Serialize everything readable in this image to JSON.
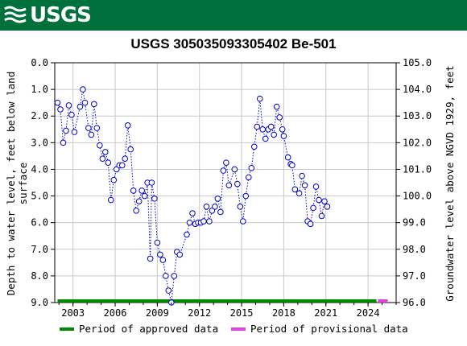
{
  "header": {
    "logo_text": "USGS",
    "logo_icon": "usgs-wave-icon",
    "brand_color": "#00703c"
  },
  "chart_data": {
    "type": "line",
    "title": "USGS 305035093305402 Be-501",
    "ylabel_left_line1": "Depth to water level, feet below land",
    "ylabel_left_line2": "surface",
    "ylabel_right": "Groundwater level above NGVD 1929, feet",
    "x_ticks": [
      "2003",
      "2006",
      "2009",
      "2012",
      "2015",
      "2018",
      "2021",
      "2024"
    ],
    "x_tick_values": [
      2003,
      2006,
      2009,
      2012,
      2015,
      2018,
      2021,
      2024
    ],
    "xlim": [
      2001.7,
      2026.0
    ],
    "ylim_left": [
      0.0,
      9.0
    ],
    "ylim_left_inverted": true,
    "y_ticks_left": [
      "0.0",
      "1.0",
      "2.0",
      "3.0",
      "4.0",
      "5.0",
      "6.0",
      "7.0",
      "8.0",
      "9.0"
    ],
    "ylim_right": [
      96.0,
      105.0
    ],
    "y_ticks_right": [
      "105.0",
      "104.0",
      "103.0",
      "102.0",
      "101.0",
      "100.0",
      "99.0",
      "98.0",
      "97.0",
      "96.0"
    ],
    "grid": true,
    "series": [
      {
        "color": "#0000cc",
        "marker": "open-circle",
        "line_style": "dotted",
        "points": [
          [
            2001.9,
            1.5
          ],
          [
            2002.1,
            1.75
          ],
          [
            2002.3,
            3.0
          ],
          [
            2002.5,
            2.55
          ],
          [
            2002.7,
            1.6
          ],
          [
            2002.9,
            1.95
          ],
          [
            2003.1,
            2.6
          ],
          [
            2003.5,
            1.65
          ],
          [
            2003.7,
            1.0
          ],
          [
            2003.85,
            1.5
          ],
          [
            2004.1,
            2.45
          ],
          [
            2004.3,
            2.7
          ],
          [
            2004.5,
            1.55
          ],
          [
            2004.7,
            2.45
          ],
          [
            2004.9,
            3.1
          ],
          [
            2005.1,
            3.6
          ],
          [
            2005.3,
            3.35
          ],
          [
            2005.5,
            3.75
          ],
          [
            2005.7,
            5.15
          ],
          [
            2005.9,
            4.4
          ],
          [
            2006.1,
            4.0
          ],
          [
            2006.3,
            3.85
          ],
          [
            2006.5,
            3.85
          ],
          [
            2006.7,
            3.6
          ],
          [
            2006.9,
            2.35
          ],
          [
            2007.1,
            3.25
          ],
          [
            2007.3,
            4.8
          ],
          [
            2007.5,
            5.55
          ],
          [
            2007.7,
            5.2
          ],
          [
            2007.9,
            4.8
          ],
          [
            2008.1,
            5.0
          ],
          [
            2008.3,
            4.5
          ],
          [
            2008.5,
            7.35
          ],
          [
            2008.6,
            4.5
          ],
          [
            2008.8,
            5.1
          ],
          [
            2009.0,
            6.75
          ],
          [
            2009.2,
            7.2
          ],
          [
            2009.4,
            7.4
          ],
          [
            2009.6,
            8.0
          ],
          [
            2009.8,
            8.55
          ],
          [
            2010.0,
            9.0
          ],
          [
            2010.2,
            8.0
          ],
          [
            2010.4,
            7.1
          ],
          [
            2010.6,
            7.2
          ],
          [
            2011.1,
            6.45
          ],
          [
            2011.3,
            6.0
          ],
          [
            2011.5,
            5.65
          ],
          [
            2011.7,
            6.05
          ],
          [
            2011.9,
            6.0
          ],
          [
            2012.1,
            6.0
          ],
          [
            2012.3,
            5.95
          ],
          [
            2012.5,
            5.4
          ],
          [
            2012.7,
            5.95
          ],
          [
            2012.9,
            5.55
          ],
          [
            2013.1,
            5.4
          ],
          [
            2013.3,
            5.1
          ],
          [
            2013.5,
            5.6
          ],
          [
            2013.7,
            4.05
          ],
          [
            2013.9,
            3.75
          ],
          [
            2014.1,
            4.6
          ],
          [
            2014.5,
            4.0
          ],
          [
            2014.7,
            4.55
          ],
          [
            2014.9,
            5.4
          ],
          [
            2015.1,
            5.95
          ],
          [
            2015.3,
            5.0
          ],
          [
            2015.5,
            4.3
          ],
          [
            2015.7,
            3.95
          ],
          [
            2015.9,
            3.15
          ],
          [
            2016.1,
            2.4
          ],
          [
            2016.3,
            1.35
          ],
          [
            2016.5,
            2.5
          ],
          [
            2016.7,
            2.85
          ],
          [
            2016.9,
            2.5
          ],
          [
            2017.1,
            2.4
          ],
          [
            2017.3,
            2.7
          ],
          [
            2017.5,
            1.65
          ],
          [
            2017.7,
            2.05
          ],
          [
            2017.9,
            2.5
          ],
          [
            2018.0,
            2.75
          ],
          [
            2018.3,
            3.55
          ],
          [
            2018.5,
            3.8
          ],
          [
            2018.6,
            3.85
          ],
          [
            2018.8,
            4.75
          ],
          [
            2019.1,
            4.9
          ],
          [
            2019.3,
            4.25
          ],
          [
            2019.5,
            4.6
          ],
          [
            2019.7,
            5.95
          ],
          [
            2019.9,
            6.05
          ],
          [
            2020.1,
            5.45
          ],
          [
            2020.3,
            4.65
          ],
          [
            2020.5,
            5.15
          ],
          [
            2020.7,
            5.75
          ],
          [
            2020.9,
            5.2
          ],
          [
            2021.1,
            5.4
          ]
        ]
      }
    ],
    "periods": [
      {
        "label": "Period of approved data",
        "color": "#008800",
        "x_start": 2001.9,
        "x_end": 2024.6
      },
      {
        "label": "Period of provisional data",
        "color": "#dd44dd",
        "x_start": 2024.7,
        "x_end": 2025.4
      }
    ],
    "legend_placement": "bottom"
  }
}
